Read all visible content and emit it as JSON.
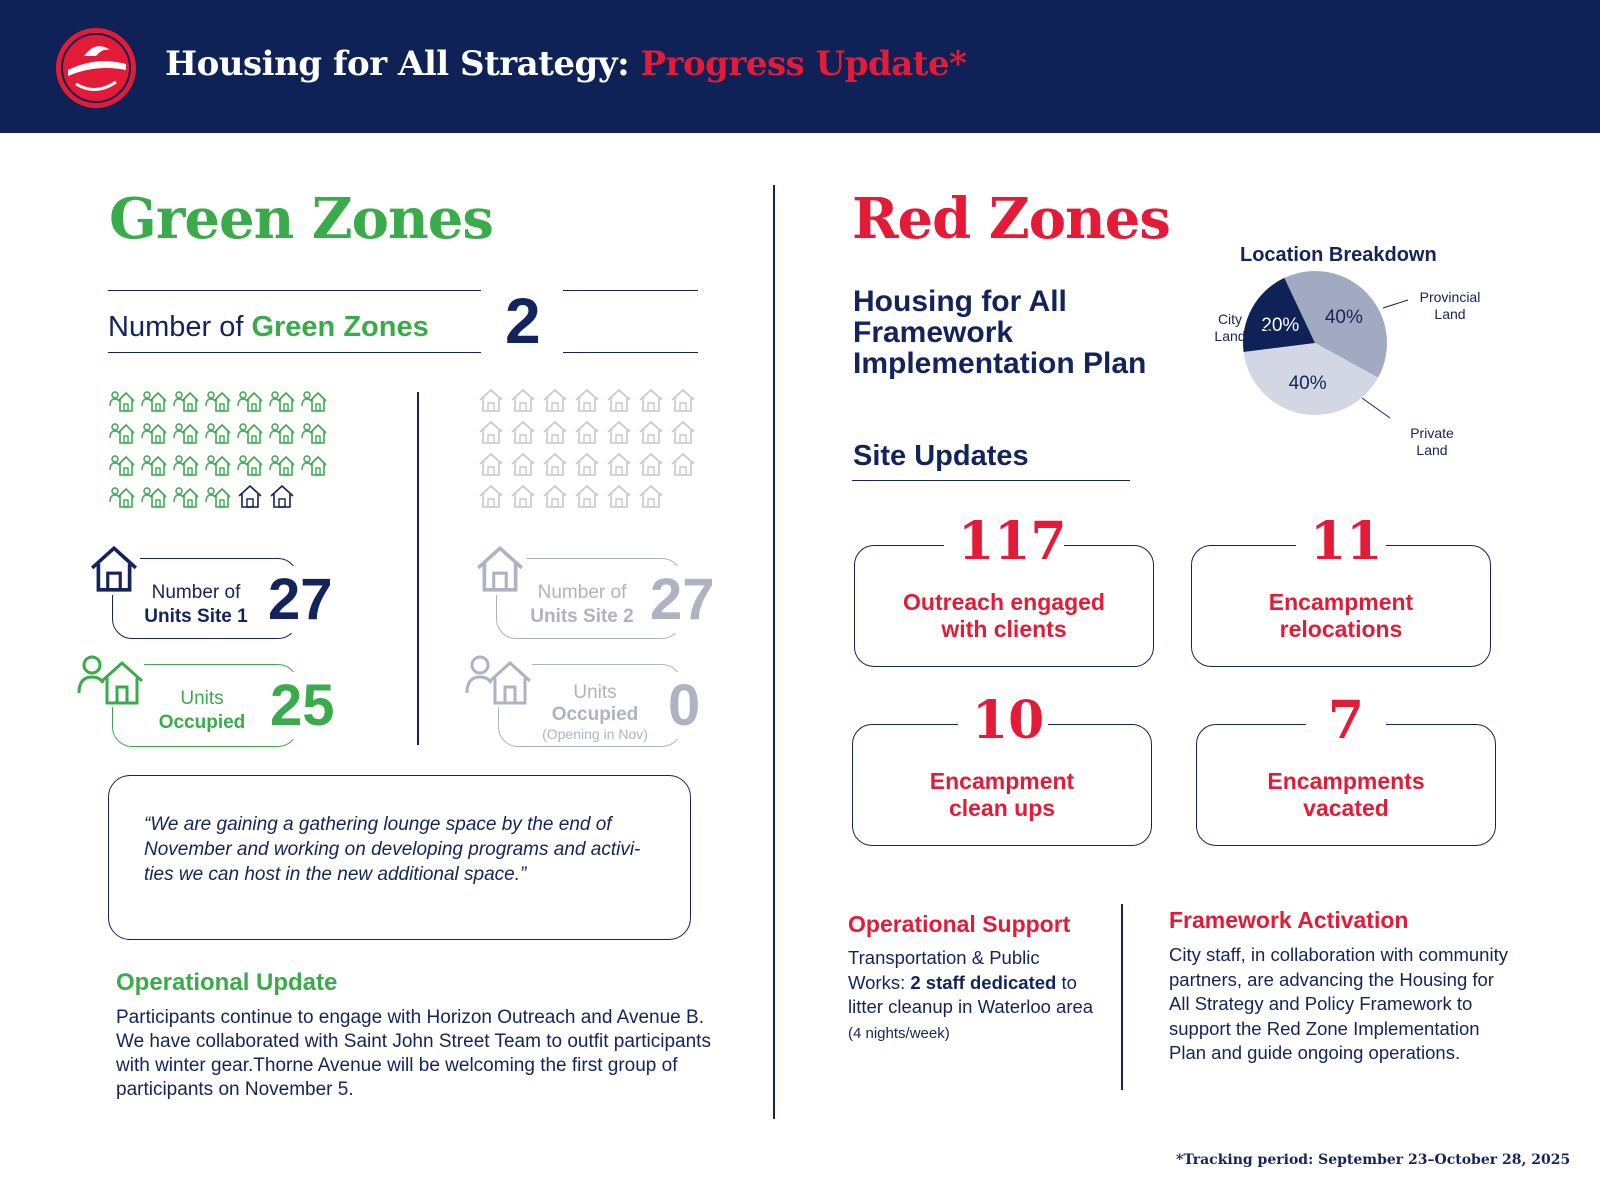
{
  "header": {
    "title_main": "Housing for All Strategy:",
    "title_accent": "Progress Update*",
    "logo_icon": "city-logo-icon"
  },
  "green": {
    "heading": "Green Zones",
    "count_label_prefix": "Number of",
    "count_label_accent": "Green Zones",
    "count_value": "2",
    "site1_units_label_line1": "Number of",
    "site1_units_label_line2": "Units Site 1",
    "site1_units_value": "27",
    "site1_occupied_label_line1": "Units",
    "site1_occupied_label_line2": "Occupied",
    "site1_occupied_value": "25",
    "site2_units_label_line1": "Number of",
    "site2_units_label_line2": "Units Site 2",
    "site2_units_value": "27",
    "site2_occupied_label_line1": "Units",
    "site2_occupied_label_line2": "Occupied",
    "site2_occupied_note": "(Opening in Nov)",
    "site2_occupied_value": "0",
    "site1_icon_grid": {
      "total": 27,
      "occupied": 25
    },
    "site2_icon_grid": {
      "total": 27,
      "occupied": 0
    },
    "quote": "“We are gaining a gathering lounge space by the end of November and working on developing programs and activi-ties we can host in the new additional space.”",
    "op_update_title": "Operational Update",
    "op_update_text": "Participants continue to engage with Horizon Outreach and Avenue B. We have collaborated with Saint John Street Team to outfit participants with winter gear.Thorne Avenue will be welcoming the first group of participants on November 5."
  },
  "red": {
    "heading": "Red Zones",
    "plan_title": "Housing for All Framework Implementation Plan",
    "location_title": "Location Breakdown",
    "site_updates_title": "Site Updates",
    "cards": [
      {
        "value": "117",
        "label_line1": "Outreach engaged",
        "label_line2": "with clients"
      },
      {
        "value": "11",
        "label_line1": "Encampment",
        "label_line2": "relocations"
      },
      {
        "value": "10",
        "label_line1": "Encampment",
        "label_line2": "clean ups"
      },
      {
        "value": "7",
        "label_line1": "Encampments",
        "label_line2": "vacated"
      }
    ],
    "op_support_title": "Operational Support",
    "op_support_text_1": "Transportation & Public Works: ",
    "op_support_text_bold": "2 staff dedicated",
    "op_support_text_2": " to litter cleanup in Waterloo area ",
    "op_support_text_small": "(4 nights/week)",
    "framework_title": "Framework Activation",
    "framework_text": "City staff, in collaboration with community partners, are advancing the Housing for All Strategy and Policy Framework to support the Red Zone Implementation Plan and guide ongoing operations."
  },
  "chart_data": {
    "type": "pie",
    "title": "Location Breakdown",
    "categories": [
      "Provincial Land",
      "Private Land",
      "City Land"
    ],
    "category_lines": [
      [
        "Provincial",
        "Land"
      ],
      [
        "Private",
        "Land"
      ],
      [
        "City",
        "Land"
      ]
    ],
    "values": [
      40,
      40,
      20
    ],
    "value_labels": [
      "40%",
      "40%",
      "20%"
    ],
    "colors": [
      "#a2aac1",
      "#d3d7e3",
      "#0f2257"
    ]
  },
  "colors": {
    "navy": "#0f2257",
    "green": "#3aab4a",
    "red": "#e31b37",
    "gray": "#aeb3c4"
  },
  "footnote": "*Tracking period: September 23–October 28, 2025"
}
